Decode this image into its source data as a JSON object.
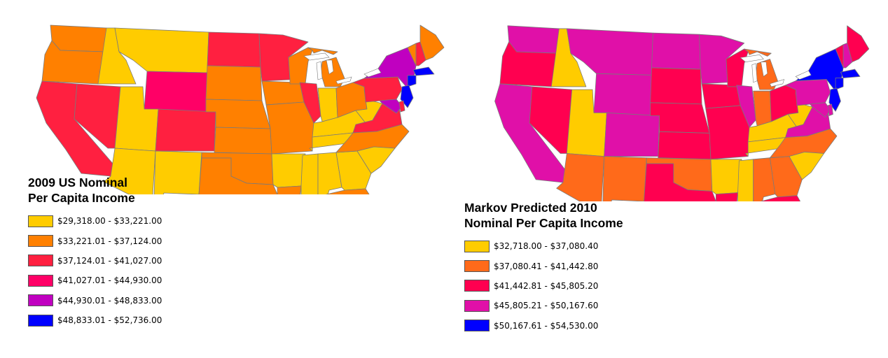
{
  "maps": [
    {
      "title_line1": "2009 US Nominal",
      "title_line2": "Per Capita Income",
      "legend": [
        {
          "label": "$29,318.00 - $33,221.00",
          "color": "#ffcc00"
        },
        {
          "label": "$33,221.01 - $37,124.00",
          "color": "#ff8000"
        },
        {
          "label": "$37,124.01 - $41,027.00",
          "color": "#ff2040"
        },
        {
          "label": "$41,027.01 - $44,930.00",
          "color": "#ff0066"
        },
        {
          "label": "$44,930.01 - $48,833.00",
          "color": "#c000c0"
        },
        {
          "label": "$48,833.01 - $52,736.00",
          "color": "#0000ff"
        }
      ],
      "states": {
        "WA": 1,
        "OR": 1,
        "CA": 2,
        "NV": 2,
        "ID": 0,
        "MT": 0,
        "WY": 3,
        "UT": 0,
        "AZ": 0,
        "CO": 2,
        "NM": 0,
        "ND": 2,
        "SD": 1,
        "NE": 1,
        "KS": 1,
        "OK": 1,
        "TX": 1,
        "MN": 2,
        "IA": 1,
        "MO": 1,
        "AR": 0,
        "LA": 1,
        "WI": 1,
        "IL": 2,
        "MS": 0,
        "MI": 1,
        "IN": 0,
        "KY": 0,
        "TN": 0,
        "AL": 0,
        "GA": 0,
        "FL": 1,
        "OH": 1,
        "WV": 0,
        "VA": 2,
        "NC": 1,
        "SC": 0,
        "PA": 2,
        "NY": 4,
        "ME": 1,
        "VT": 1,
        "NH": 2,
        "MA": 5,
        "CT": 5,
        "NJ": 5,
        "MD": 4,
        "DE": 2
      }
    },
    {
      "title_line1": "Markov Predicted 2010",
      "title_line2": "Nominal Per Capita Income",
      "legend": [
        {
          "label": "$32,718.00 - $37,080.40",
          "color": "#ffcc00"
        },
        {
          "label": "$37,080.41 - $41,442.80",
          "color": "#ff6a1a"
        },
        {
          "label": "$41,442.81 - $45,805.20",
          "color": "#ff0050"
        },
        {
          "label": "$45,805.21 - $50,167.60",
          "color": "#e010a8"
        },
        {
          "label": "$50,167.61 - $54,530.00",
          "color": "#0000ff"
        }
      ],
      "states": {
        "WA": 3,
        "OR": 2,
        "CA": 3,
        "NV": 2,
        "ID": 0,
        "MT": 3,
        "WY": 3,
        "UT": 0,
        "AZ": 1,
        "CO": 3,
        "NM": 1,
        "ND": 3,
        "SD": 2,
        "NE": 2,
        "KS": 2,
        "OK": 1,
        "TX": 2,
        "MN": 3,
        "IA": 2,
        "MO": 2,
        "AR": 0,
        "LA": 2,
        "WI": 2,
        "IL": 3,
        "MS": 0,
        "MI": 1,
        "IN": 1,
        "KY": 0,
        "TN": 0,
        "AL": 1,
        "GA": 1,
        "FL": 2,
        "OH": 2,
        "WV": 0,
        "VA": 3,
        "NC": 1,
        "SC": 0,
        "PA": 3,
        "NY": 4,
        "ME": 2,
        "VT": 2,
        "NH": 3,
        "MA": 4,
        "CT": 4,
        "NJ": 4,
        "MD": 3,
        "DE": 3
      }
    }
  ]
}
